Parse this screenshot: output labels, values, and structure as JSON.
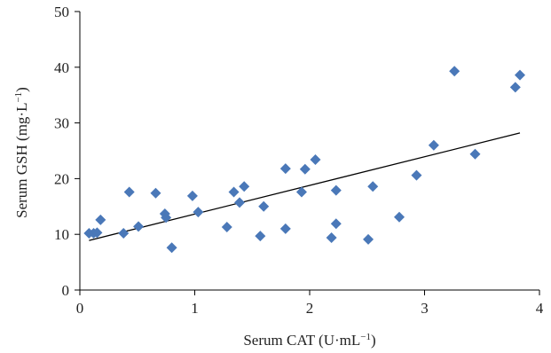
{
  "chart_data": {
    "type": "scatter",
    "xlabel": "Serum CAT (U·mL",
    "xlabel_sup": "−1",
    "xlabel_close": ")",
    "ylabel": "Serum GSH (mg·L",
    "ylabel_sup": "−1",
    "ylabel_close": ")",
    "xlim": [
      0,
      4
    ],
    "ylim": [
      0,
      50
    ],
    "xticks": [
      "0",
      "1",
      "2",
      "3",
      "4"
    ],
    "yticks": [
      "0",
      "10",
      "20",
      "30",
      "40",
      "50"
    ],
    "grid": false,
    "marker_color": "#4a78b8",
    "trendline_color": "#000000",
    "trendline": {
      "x": [
        0.08,
        3.83
      ],
      "y": [
        8.9,
        28.2
      ]
    },
    "points": {
      "x": [
        0.08,
        0.12,
        0.15,
        0.18,
        0.38,
        0.43,
        0.51,
        0.66,
        0.74,
        0.75,
        0.8,
        0.98,
        1.03,
        1.28,
        1.34,
        1.39,
        1.43,
        1.57,
        1.6,
        1.79,
        1.79,
        1.93,
        1.96,
        2.05,
        2.19,
        2.23,
        2.23,
        2.51,
        2.55,
        2.78,
        2.93,
        3.08,
        3.26,
        3.44,
        3.79,
        3.83
      ],
      "y": [
        10.2,
        10.2,
        10.3,
        12.6,
        10.2,
        17.6,
        11.4,
        17.4,
        13.7,
        13.0,
        7.6,
        16.9,
        14.0,
        11.3,
        17.6,
        15.7,
        18.6,
        9.7,
        15.0,
        21.8,
        11.0,
        17.6,
        21.7,
        23.4,
        9.4,
        11.9,
        17.9,
        9.1,
        18.6,
        13.1,
        20.6,
        26.0,
        39.3,
        24.4,
        36.4,
        38.6
      ]
    }
  }
}
